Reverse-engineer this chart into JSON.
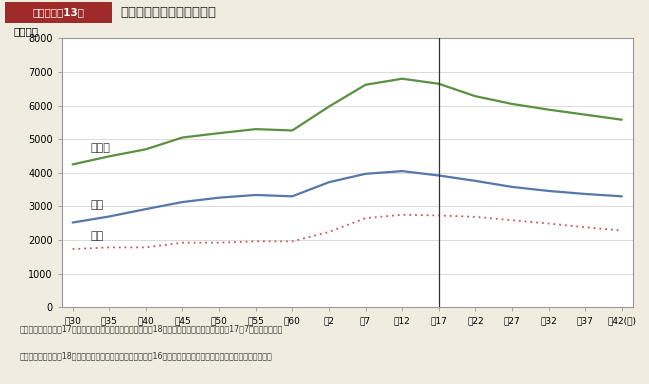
{
  "background_color": "#f0ece0",
  "plot_bg_color": "#ffffff",
  "header_red": "#9e2a2a",
  "header_label": "第１－特－13図",
  "header_title": "労働力人口の推移と見通し",
  "ylabel": "（万人）",
  "x_labels": [
    "昭30",
    "昭35",
    "昭40",
    "昭45",
    "昭50",
    "昭55",
    "昭60",
    "平2",
    "平7",
    "平12",
    "平17",
    "平22",
    "平27",
    "平32",
    "平37",
    "平42(年)"
  ],
  "x_values": [
    0,
    1,
    2,
    3,
    4,
    5,
    6,
    7,
    8,
    9,
    10,
    11,
    12,
    13,
    14,
    15
  ],
  "vline_x": 10,
  "danjo_label": "男女計",
  "dansei_label": "男性",
  "josei_label": "女性",
  "danjo": [
    4250,
    4490,
    4700,
    5050,
    5180,
    5300,
    5260,
    5970,
    6620,
    6800,
    6650,
    6280,
    6050,
    5880,
    5730,
    5580
  ],
  "dansei": [
    2520,
    2700,
    2920,
    3130,
    3260,
    3340,
    3300,
    3720,
    3970,
    4050,
    3920,
    3760,
    3580,
    3460,
    3370,
    3300
  ],
  "josei": [
    1730,
    1780,
    1780,
    1920,
    1920,
    1960,
    1960,
    2240,
    2650,
    2750,
    2730,
    2690,
    2590,
    2490,
    2380,
    2280
  ],
  "danjo_color": "#5a9040",
  "dansei_color": "#5577aa",
  "josei_color": "#cc5555",
  "ylim": [
    0,
    8000
  ],
  "yticks": [
    0,
    1000,
    2000,
    3000,
    4000,
    5000,
    6000,
    7000,
    8000
  ],
  "note1": "（備考）　１．平成17年までは総務省「労働力調査」，平成18年以降は厚生労働省推計（平成17年7月）より作成。",
  "note2": "　　　　　２．平成18年以降は性・年齢別の労働力率が平成16年の実績と同じ水準で推移すると仮定したケース。"
}
